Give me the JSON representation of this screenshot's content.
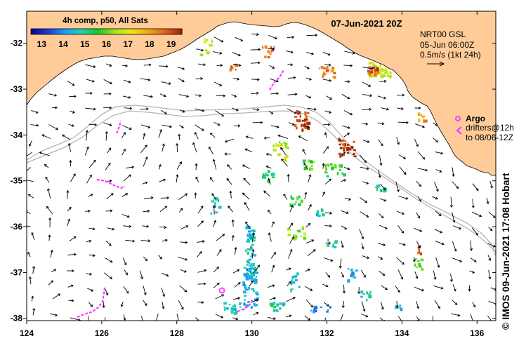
{
  "header": {
    "title": "07-Jun-2021 20Z",
    "sst_caption": "4h comp, p50, All Sats"
  },
  "colorbar": {
    "ticks": [
      "13",
      "14",
      "15",
      "16",
      "17",
      "18",
      "19"
    ],
    "range": [
      12.5,
      19.5
    ],
    "colors": [
      "#0a0a8c",
      "#1e3cdc",
      "#1ea0f0",
      "#1ed2b4",
      "#1ec81e",
      "#a0e61e",
      "#f0e614",
      "#f0aa14",
      "#e6641e",
      "#a0280a"
    ]
  },
  "legend": {
    "product": "NRT00 GSL",
    "time": "05-Jun 06:00Z",
    "scale": "0.5m/s (1kt 24h)"
  },
  "argo": {
    "label": "Argo",
    "drifters_line1": "drifters@12h",
    "drifters_line2": "to 08/06-12Z",
    "color": "#ff3cff",
    "position": [
      129.1,
      -37.4
    ]
  },
  "credit": "© IMOS 09-Jun-2021 17:08 Hobart",
  "axes": {
    "lon_labels": [
      "124",
      "126",
      "128",
      "130",
      "132",
      "134",
      "136"
    ],
    "lat_labels": [
      "-32",
      "-33",
      "-34",
      "-35",
      "-36",
      "-37",
      "-38"
    ],
    "lon_range": [
      124,
      136.5
    ],
    "lat_range": [
      -31.3,
      -38.05
    ]
  },
  "colors": {
    "land": "#ffcc99",
    "ocean": "#ffffff",
    "isobath": "#b4b4b4",
    "arrow": "#000000",
    "drifter": "#ff3cff"
  }
}
